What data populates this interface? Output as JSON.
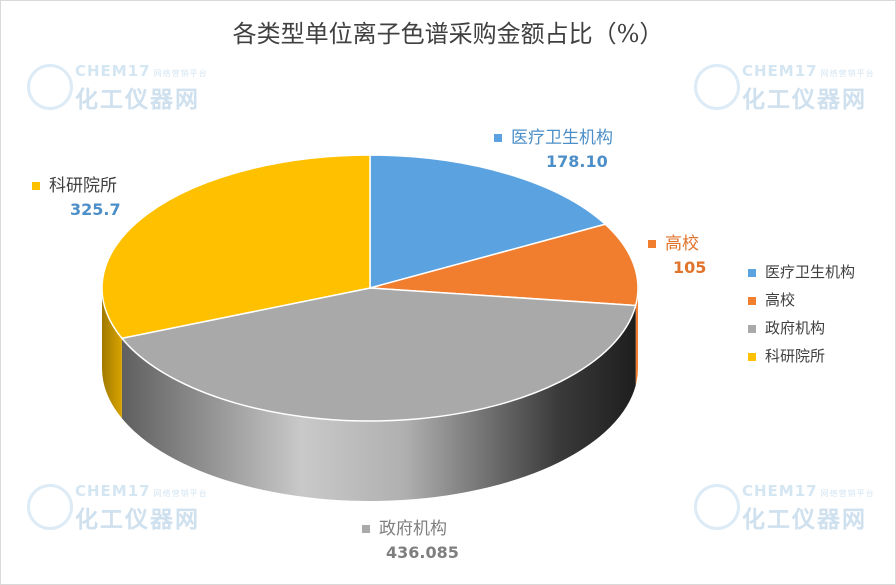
{
  "chart_data": {
    "type": "pie",
    "title": "各类型单位离子色谱采购金额占比（%）",
    "slices": [
      {
        "name": "医疗卫生机构",
        "value": 178.1,
        "label": "178.10",
        "color": "#5ba3e0"
      },
      {
        "name": "高校",
        "value": 105,
        "label": "105",
        "color": "#f07e2e"
      },
      {
        "name": "政府机构",
        "value": 436.085,
        "label": "436.085",
        "color": "#a9a9a9"
      },
      {
        "name": "科研院所",
        "value": 325.7,
        "label": "325.7",
        "color": "#ffc000"
      }
    ],
    "legend_position": "right",
    "label_colors": {
      "医疗卫生机构": "#4d8fc8",
      "高校": "#e0742c",
      "政府机构": "#7f7f7f",
      "科研院所": "#4d8fc8"
    }
  },
  "watermark": {
    "line1": "CHEM17",
    "line1_small": "网络营销平台",
    "line2": "化工仪器网"
  }
}
